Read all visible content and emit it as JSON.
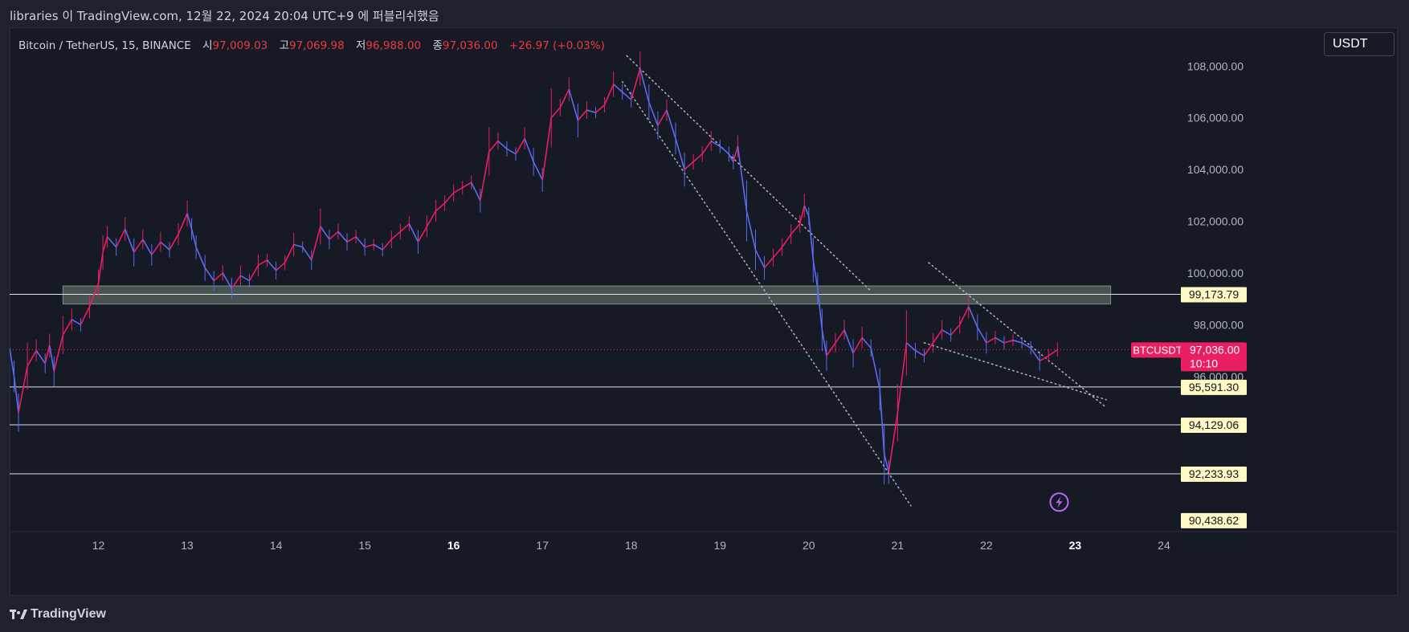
{
  "caption": "libraries 이 TradingView.com, 12월 22, 2024 20:04 UTC+9 에 퍼블리쉬했음",
  "legend": {
    "symbol": "Bitcoin / TetherUS, 15, BINANCE",
    "open_label": "시",
    "open": "97,009.03",
    "high_label": "고",
    "high": "97,069.98",
    "low_label": "저",
    "low": "96,988.00",
    "close_label": "종",
    "close": "97,036.00",
    "change": "+26.97 (+0.03%)"
  },
  "currency": "USDT",
  "footer": "TradingView",
  "colors": {
    "background": "#161a25",
    "up": "#e91e63",
    "down": "#5b6cf0",
    "current_price": "#e91e63",
    "level_label_bg": "#fff9c4",
    "zone_fill": "#c8e6c9"
  },
  "chart_data": {
    "type": "line",
    "title": "Bitcoin / TetherUS, 15, BINANCE",
    "x_ticks": [
      "12",
      "13",
      "14",
      "15",
      "16",
      "17",
      "18",
      "19",
      "20",
      "21",
      "22",
      "23",
      "24"
    ],
    "y_ticks": [
      "108,000.00",
      "106,000.00",
      "104,000.00",
      "102,000.00",
      "100,000.00",
      "98,000.00",
      "96,000.00"
    ],
    "ylim": [
      90000,
      109500
    ],
    "xlim": [
      11.0,
      24.1
    ],
    "series": [
      {
        "x": [
          11.0,
          11.05,
          11.1,
          11.2,
          11.3,
          11.4,
          11.45,
          11.5,
          11.6,
          11.7,
          11.8,
          11.9,
          12.0,
          12.05,
          12.1,
          12.2,
          12.3,
          12.4,
          12.5,
          12.6,
          12.7,
          12.8,
          12.9,
          13.0,
          13.05,
          13.1,
          13.2,
          13.3,
          13.4,
          13.5,
          13.6,
          13.7,
          13.8,
          13.9,
          14.0,
          14.1,
          14.2,
          14.3,
          14.4,
          14.5,
          14.6,
          14.7,
          14.8,
          14.9,
          15.0,
          15.1,
          15.2,
          15.3,
          15.4,
          15.5,
          15.6,
          15.7,
          15.8,
          15.9,
          16.0,
          16.1,
          16.2,
          16.3,
          16.4,
          16.5,
          16.6,
          16.7,
          16.8,
          16.9,
          17.0,
          17.1,
          17.2,
          17.3,
          17.4,
          17.5,
          17.6,
          17.7,
          17.8,
          17.9,
          18.0,
          18.1,
          18.2,
          18.3,
          18.4,
          18.5,
          18.6,
          18.7,
          18.8,
          18.9,
          19.0,
          19.1,
          19.15,
          19.2,
          19.3,
          19.4,
          19.5,
          19.6,
          19.7,
          19.8,
          19.9,
          19.95,
          20.0,
          20.05,
          20.1,
          20.15,
          20.2,
          20.3,
          20.4,
          20.5,
          20.6,
          20.7,
          20.8,
          20.85,
          20.9,
          21.0,
          21.1,
          21.2,
          21.3,
          21.4,
          21.5,
          21.6,
          21.7,
          21.8,
          21.9,
          22.0,
          22.1,
          22.2,
          22.3,
          22.4,
          22.5,
          22.6,
          22.7,
          22.8
        ],
        "values": [
          97100,
          96000,
          94600,
          96400,
          97000,
          96500,
          97200,
          96200,
          97600,
          98200,
          98000,
          98700,
          99600,
          100800,
          101400,
          101000,
          101700,
          100800,
          101300,
          100700,
          101200,
          100900,
          101500,
          102300,
          101700,
          101000,
          100200,
          99700,
          100000,
          99400,
          99900,
          99700,
          100300,
          100500,
          100100,
          100400,
          101100,
          101000,
          100500,
          101800,
          101300,
          101600,
          101200,
          101400,
          101000,
          101100,
          100900,
          101300,
          101600,
          101900,
          101200,
          101800,
          102400,
          102700,
          103100,
          103300,
          103500,
          102800,
          104700,
          105100,
          104800,
          104600,
          105200,
          104300,
          103600,
          106000,
          106400,
          107100,
          105900,
          106300,
          106200,
          106500,
          107300,
          107000,
          106700,
          107900,
          106600,
          105700,
          106300,
          105200,
          104000,
          104300,
          104600,
          105100,
          104900,
          104600,
          104300,
          104900,
          102400,
          100900,
          100200,
          100600,
          101000,
          101500,
          101900,
          102600,
          102200,
          100500,
          99400,
          97800,
          96800,
          97300,
          97800,
          96900,
          97500,
          97100,
          95500,
          93000,
          92300,
          94600,
          97300,
          97000,
          96800,
          97300,
          97800,
          97600,
          98000,
          98700,
          97900,
          97300,
          97500,
          97300,
          97400,
          97300,
          97100,
          96600,
          96800,
          97036
        ]
      }
    ],
    "horizontal_levels": [
      {
        "label": "99,173.79",
        "value": 99173.79
      },
      {
        "label": "95,591.30",
        "value": 95591.3
      },
      {
        "label": "94,129.06",
        "value": 94129.06
      },
      {
        "label": "92,233.93",
        "value": 92233.93
      },
      {
        "label": "90,438.62",
        "value": 90438.62
      }
    ],
    "zone": {
      "from": 98800,
      "to": 99500,
      "x_start": 11.6,
      "x_end": 23.4
    },
    "current_price": {
      "symbol": "BTCUSDT",
      "price": "97,036.00",
      "countdown": "10:10",
      "value": 97036
    },
    "trendlines": [
      {
        "x1": 17.95,
        "y1": 108400,
        "x2": 20.7,
        "y2": 99300
      },
      {
        "x1": 17.9,
        "y1": 107400,
        "x2": 21.15,
        "y2": 91000
      },
      {
        "x1": 21.35,
        "y1": 100400,
        "x2": 23.35,
        "y2": 94800
      },
      {
        "x1": 21.3,
        "y1": 97300,
        "x2": 23.35,
        "y2": 95100
      }
    ],
    "bold_x_ticks": [
      "16",
      "23"
    ]
  }
}
